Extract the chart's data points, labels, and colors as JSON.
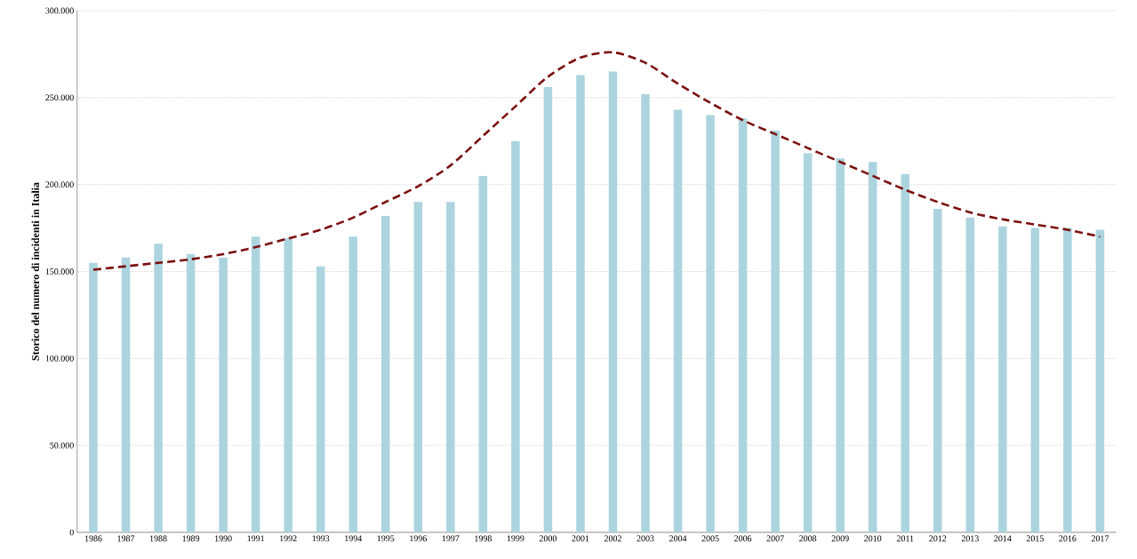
{
  "chart_data": {
    "type": "bar",
    "ylabel": "Storico del numero di incidenti in Italia",
    "categories": [
      "1986",
      "1987",
      "1988",
      "1989",
      "1990",
      "1991",
      "1992",
      "1993",
      "1994",
      "1995",
      "1996",
      "1997",
      "1998",
      "1999",
      "2000",
      "2001",
      "2002",
      "2003",
      "2004",
      "2005",
      "2006",
      "2007",
      "2008",
      "2009",
      "2010",
      "2011",
      "2012",
      "2013",
      "2014",
      "2015",
      "2016",
      "2017"
    ],
    "series": [
      {
        "color": "#acd4df",
        "values": [
          155000,
          158000,
          166000,
          160000,
          158000,
          170000,
          169000,
          153000,
          170000,
          182000,
          190000,
          190000,
          205000,
          225000,
          256000,
          263000,
          265000,
          252000,
          243000,
          240000,
          238000,
          231000,
          218000,
          215000,
          213000,
          206000,
          186000,
          181000,
          176000,
          175000,
          175000,
          174000
        ]
      },
      {
        "type": "line",
        "color": "#7b1010",
        "line_style": "dashed",
        "values": [
          151000,
          153000,
          155000,
          157000,
          160000,
          164000,
          169000,
          174000,
          181000,
          190000,
          199000,
          211000,
          228000,
          245000,
          262000,
          273000,
          276000,
          270000,
          258000,
          247000,
          237000,
          229000,
          221000,
          213000,
          205000,
          197000,
          190000,
          184000,
          180000,
          177000,
          174000,
          170000
        ]
      }
    ],
    "ylim": [
      0,
      300000
    ],
    "yticks": [
      {
        "value": 0,
        "label": "0"
      },
      {
        "value": 50000,
        "label": "50.000"
      },
      {
        "value": 100000,
        "label": "100.000"
      },
      {
        "value": 150000,
        "label": "150.000"
      },
      {
        "value": 200000,
        "label": "200.000"
      },
      {
        "value": 250000,
        "label": "250.000"
      },
      {
        "value": 300000,
        "label": "300.000"
      }
    ],
    "grid": "y"
  }
}
